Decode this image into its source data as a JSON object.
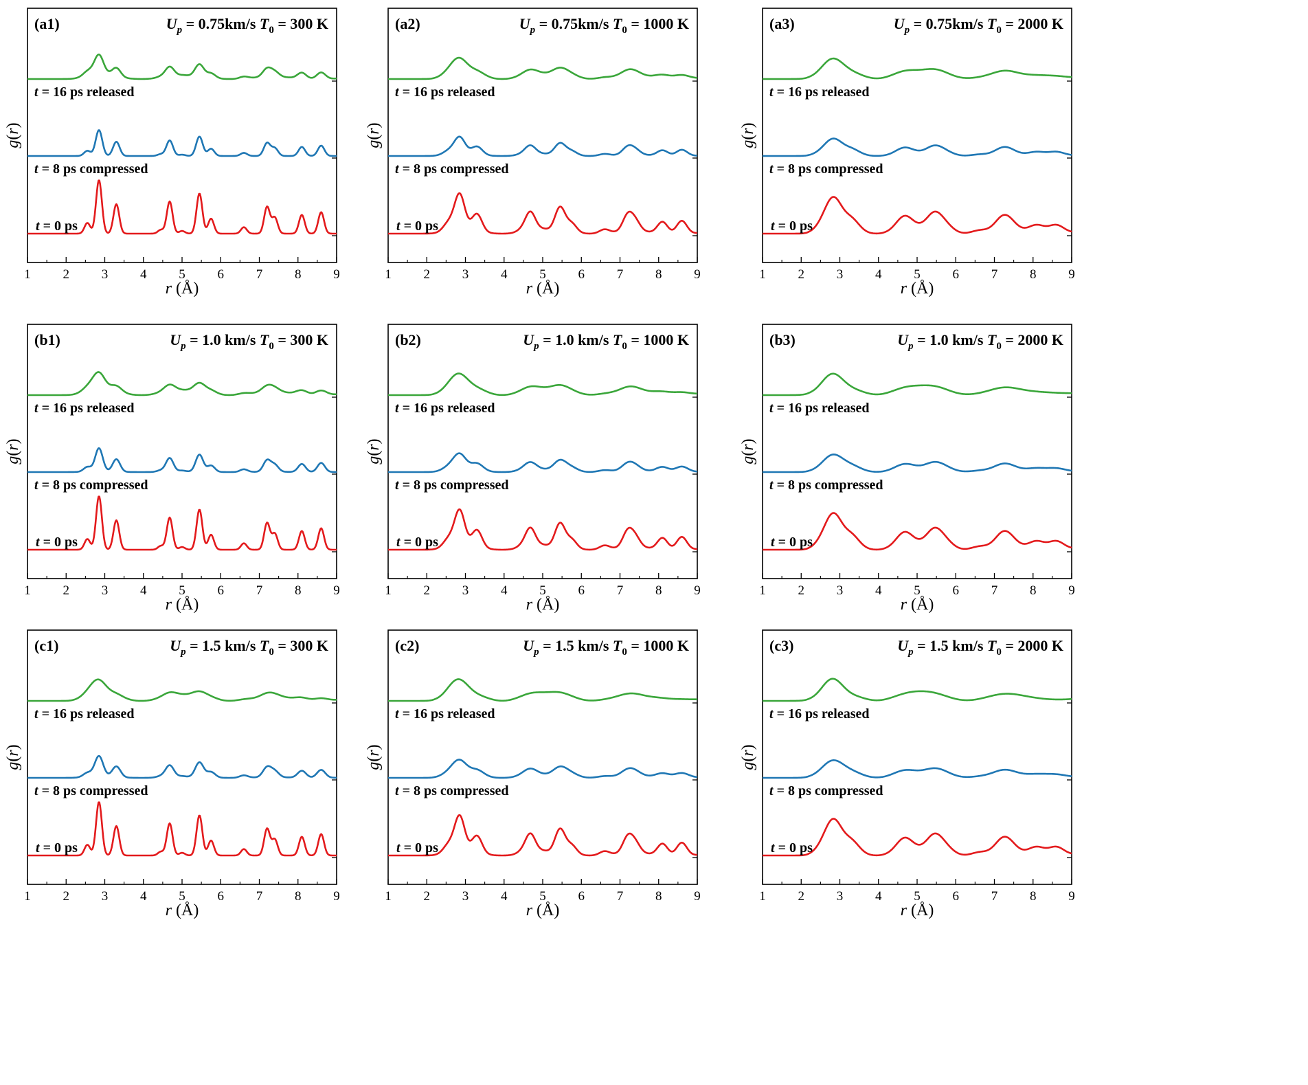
{
  "figure": {
    "ylabel": "g(r)",
    "xlabel": "r (Å)",
    "colors": {
      "t0": "#e31a1c",
      "t8": "#1f77b4",
      "t16": "#3aa63a"
    }
  },
  "chart_data": [
    {
      "id": "a1",
      "type": "line",
      "panel_label": "(a1)",
      "title": "Up = 0.75km/s T0 = 300 K",
      "up": "0.75km/s",
      "t0": "300 K",
      "temperature": "low",
      "intensity": 0.0,
      "xlabel": "r (Å)",
      "ylabel": "g(r)",
      "xlim": [
        1,
        9
      ],
      "xticks": [
        1,
        2,
        3,
        4,
        5,
        6,
        7,
        8,
        9
      ],
      "grid": false,
      "series": [
        {
          "name": "t = 0 ps",
          "time": "t = 0 ps",
          "color": "#e31a1c"
        },
        {
          "name": "t = 8 ps compressed",
          "time": "t = 8 ps compressed",
          "color": "#1f77b4"
        },
        {
          "name": "t = 16 ps released",
          "time": "t = 16 ps released",
          "color": "#3aa63a"
        }
      ]
    },
    {
      "id": "a2",
      "type": "line",
      "panel_label": "(a2)",
      "title": "Up = 0.75km/s T0 = 1000 K",
      "up": "0.75km/s",
      "t0": "1000 K",
      "temperature": "mid",
      "intensity": 0.0,
      "xlabel": "r (Å)",
      "ylabel": "g(r)",
      "xlim": [
        1,
        9
      ],
      "xticks": [
        1,
        2,
        3,
        4,
        5,
        6,
        7,
        8,
        9
      ],
      "grid": false,
      "series": [
        {
          "name": "t = 0 ps",
          "time": "t = 0 ps",
          "color": "#e31a1c"
        },
        {
          "name": "t = 8 ps compressed",
          "time": "t = 8 ps compressed",
          "color": "#1f77b4"
        },
        {
          "name": "t = 16 ps released",
          "time": "t = 16 ps released",
          "color": "#3aa63a"
        }
      ]
    },
    {
      "id": "a3",
      "type": "line",
      "panel_label": "(a3)",
      "title": "Up = 0.75km/s T0 = 2000 K",
      "up": "0.75km/s",
      "t0": "2000 K",
      "temperature": "high",
      "intensity": 0.0,
      "xlabel": "r (Å)",
      "ylabel": "g(r)",
      "xlim": [
        1,
        9
      ],
      "xticks": [
        1,
        2,
        3,
        4,
        5,
        6,
        7,
        8,
        9
      ],
      "grid": false,
      "series": [
        {
          "name": "t = 0 ps",
          "time": "t = 0 ps",
          "color": "#e31a1c"
        },
        {
          "name": "t = 8 ps compressed",
          "time": "t = 8 ps compressed",
          "color": "#1f77b4"
        },
        {
          "name": "t = 16 ps released",
          "time": "t = 16 ps released",
          "color": "#3aa63a"
        }
      ]
    },
    {
      "id": "b1",
      "type": "line",
      "panel_label": "(b1)",
      "title": "Up = 1.0 km/s T0 = 300 K",
      "up": "1.0 km/s",
      "t0": "300 K",
      "temperature": "low",
      "intensity": 0.5,
      "xlabel": "r (Å)",
      "ylabel": "g(r)",
      "xlim": [
        1,
        9
      ],
      "xticks": [
        1,
        2,
        3,
        4,
        5,
        6,
        7,
        8,
        9
      ],
      "grid": false,
      "series": [
        {
          "name": "t = 0 ps",
          "time": "t = 0 ps",
          "color": "#e31a1c"
        },
        {
          "name": "t = 8 ps compressed",
          "time": "t = 8 ps compressed",
          "color": "#1f77b4"
        },
        {
          "name": "t = 16 ps released",
          "time": "t = 16 ps released",
          "color": "#3aa63a"
        }
      ]
    },
    {
      "id": "b2",
      "type": "line",
      "panel_label": "(b2)",
      "title": "Up = 1.0 km/s T0 = 1000 K",
      "up": "1.0 km/s",
      "t0": "1000 K",
      "temperature": "mid",
      "intensity": 0.5,
      "xlabel": "r (Å)",
      "ylabel": "g(r)",
      "xlim": [
        1,
        9
      ],
      "xticks": [
        1,
        2,
        3,
        4,
        5,
        6,
        7,
        8,
        9
      ],
      "grid": false,
      "series": [
        {
          "name": "t = 0 ps",
          "time": "t = 0 ps",
          "color": "#e31a1c"
        },
        {
          "name": "t = 8 ps compressed",
          "time": "t = 8 ps compressed",
          "color": "#1f77b4"
        },
        {
          "name": "t = 16 ps released",
          "time": "t = 16 ps released",
          "color": "#3aa63a"
        }
      ]
    },
    {
      "id": "b3",
      "type": "line",
      "panel_label": "(b3)",
      "title": "Up = 1.0 km/s T0 = 2000 K",
      "up": "1.0 km/s",
      "t0": "2000 K",
      "temperature": "high",
      "intensity": 0.5,
      "xlabel": "r (Å)",
      "ylabel": "g(r)",
      "xlim": [
        1,
        9
      ],
      "xticks": [
        1,
        2,
        3,
        4,
        5,
        6,
        7,
        8,
        9
      ],
      "grid": false,
      "series": [
        {
          "name": "t = 0 ps",
          "time": "t = 0 ps",
          "color": "#e31a1c"
        },
        {
          "name": "t = 8 ps compressed",
          "time": "t = 8 ps compressed",
          "color": "#1f77b4"
        },
        {
          "name": "t = 16 ps released",
          "time": "t = 16 ps released",
          "color": "#3aa63a"
        }
      ]
    },
    {
      "id": "c1",
      "type": "line",
      "panel_label": "(c1)",
      "title": "Up = 1.5 km/s T0 = 300 K",
      "up": "1.5 km/s",
      "t0": "300 K",
      "temperature": "low",
      "intensity": 1.0,
      "xlabel": "r (Å)",
      "ylabel": "g(r)",
      "xlim": [
        1,
        9
      ],
      "xticks": [
        1,
        2,
        3,
        4,
        5,
        6,
        7,
        8,
        9
      ],
      "grid": false,
      "series": [
        {
          "name": "t = 0 ps",
          "time": "t = 0 ps",
          "color": "#e31a1c"
        },
        {
          "name": "t = 8 ps compressed",
          "time": "t = 8 ps compressed",
          "color": "#1f77b4"
        },
        {
          "name": "t = 16 ps released",
          "time": "t = 16 ps released",
          "color": "#3aa63a"
        }
      ]
    },
    {
      "id": "c2",
      "type": "line",
      "panel_label": "(c2)",
      "title": "Up = 1.5 km/s T0 = 1000 K",
      "up": "1.5 km/s",
      "t0": "1000 K",
      "temperature": "mid",
      "intensity": 1.0,
      "xlabel": "r (Å)",
      "ylabel": "g(r)",
      "xlim": [
        1,
        9
      ],
      "xticks": [
        1,
        2,
        3,
        4,
        5,
        6,
        7,
        8,
        9
      ],
      "grid": false,
      "series": [
        {
          "name": "t = 0 ps",
          "time": "t = 0 ps",
          "color": "#e31a1c"
        },
        {
          "name": "t = 8 ps compressed",
          "time": "t = 8 ps compressed",
          "color": "#1f77b4"
        },
        {
          "name": "t = 16 ps released",
          "time": "t = 16 ps released",
          "color": "#3aa63a"
        }
      ]
    },
    {
      "id": "c3",
      "type": "line",
      "panel_label": "(c3)",
      "title": "Up = 1.5 km/s T0 = 2000 K",
      "up": "1.5 km/s",
      "t0": "2000 K",
      "temperature": "high",
      "intensity": 1.0,
      "xlabel": "r (Å)",
      "ylabel": "g(r)",
      "xlim": [
        1,
        9
      ],
      "xticks": [
        1,
        2,
        3,
        4,
        5,
        6,
        7,
        8,
        9
      ],
      "grid": false,
      "series": [
        {
          "name": "t = 0 ps",
          "time": "t = 0 ps",
          "color": "#e31a1c"
        },
        {
          "name": "t = 8 ps compressed",
          "time": "t = 8 ps compressed",
          "color": "#1f77b4"
        },
        {
          "name": "t = 16 ps released",
          "time": "t = 16 ps released",
          "color": "#3aa63a"
        }
      ]
    }
  ]
}
